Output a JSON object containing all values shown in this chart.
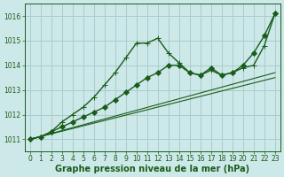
{
  "background_color": "#cce8e8",
  "grid_color": "#aacccc",
  "line_color": "#1a5c1a",
  "series": [
    {
      "comment": "Line with peak around x=10-12, then drops, marker=+",
      "x": [
        0,
        1,
        2,
        3,
        4,
        5,
        6,
        7,
        8,
        9,
        10,
        11,
        12,
        13,
        14,
        15,
        16,
        17,
        18,
        19,
        20,
        21,
        22,
        23
      ],
      "y": [
        1011.0,
        1011.1,
        1011.3,
        1011.7,
        1012.0,
        1012.3,
        1012.7,
        1013.2,
        1013.7,
        1014.3,
        1014.9,
        1014.9,
        1015.1,
        1014.5,
        1014.1,
        1013.7,
        1013.6,
        1013.8,
        1013.6,
        1013.7,
        1013.9,
        1014.0,
        1014.8,
        1016.1
      ],
      "marker": "+",
      "markersize": 5,
      "linewidth": 1.0
    },
    {
      "comment": "Line that goes up then sharply up at end, with diamond markers",
      "x": [
        0,
        1,
        2,
        3,
        4,
        5,
        6,
        7,
        8,
        9,
        10,
        11,
        12,
        13,
        14,
        15,
        16,
        17,
        18,
        19,
        20,
        21,
        22,
        23
      ],
      "y": [
        1011.0,
        1011.1,
        1011.3,
        1011.5,
        1011.7,
        1011.9,
        1012.1,
        1012.3,
        1012.6,
        1012.9,
        1013.2,
        1013.5,
        1013.7,
        1014.0,
        1014.0,
        1013.7,
        1013.6,
        1013.9,
        1013.6,
        1013.7,
        1014.0,
        1014.5,
        1015.2,
        1016.1
      ],
      "marker": "D",
      "markersize": 3,
      "linewidth": 1.0
    },
    {
      "comment": "Thin gradual line 1 - nearly linear from 1011 to ~1014",
      "x": [
        0,
        23
      ],
      "y": [
        1011.0,
        1013.7
      ],
      "marker": null,
      "markersize": 0,
      "linewidth": 0.8
    },
    {
      "comment": "Thin gradual line 2 - nearly linear from 1011 to ~1013.6",
      "x": [
        0,
        23
      ],
      "y": [
        1011.0,
        1013.5
      ],
      "marker": null,
      "markersize": 0,
      "linewidth": 0.8
    }
  ],
  "xlim": [
    -0.5,
    23.5
  ],
  "ylim": [
    1010.5,
    1016.5
  ],
  "yticks": [
    1011,
    1012,
    1013,
    1014,
    1015,
    1016
  ],
  "xticks": [
    0,
    1,
    2,
    3,
    4,
    5,
    6,
    7,
    8,
    9,
    10,
    11,
    12,
    13,
    14,
    15,
    16,
    17,
    18,
    19,
    20,
    21,
    22,
    23
  ],
  "xlabel": "Graphe pression niveau de la mer (hPa)",
  "xlabel_fontsize": 7,
  "tick_fontsize": 5.5,
  "title": ""
}
